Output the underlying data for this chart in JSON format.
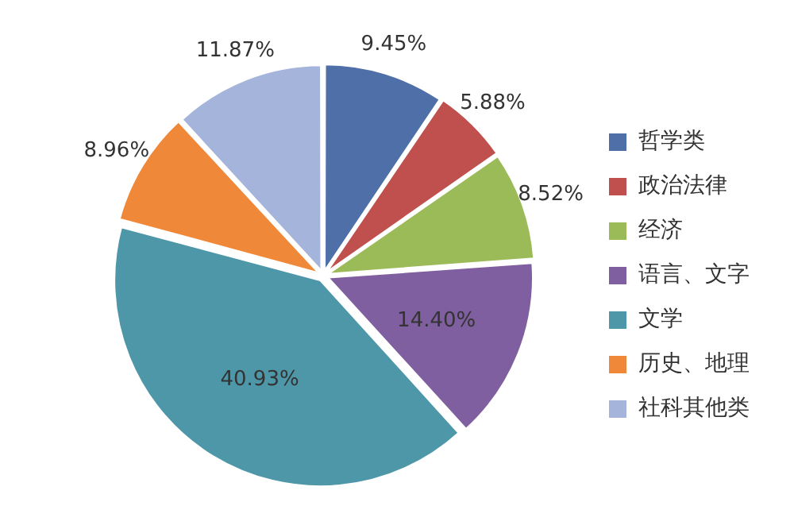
{
  "chart_data": {
    "type": "pie",
    "categories": [
      "哲学类",
      "政治法律",
      "经济",
      "语言、文字",
      "文学",
      "历史、地理",
      "社科其他类"
    ],
    "values": [
      9.45,
      5.88,
      8.52,
      14.4,
      40.93,
      8.96,
      11.87
    ],
    "colors": [
      "#4f6fa8",
      "#c0504d",
      "#9bbb59",
      "#7f5f9f",
      "#4e97a8",
      "#f0883a",
      "#a5b4da"
    ],
    "value_labels": [
      "9.45%",
      "5.88%",
      "8.52%",
      "14.40%",
      "40.93%",
      "8.96%",
      "11.87%"
    ],
    "legend": "right"
  }
}
